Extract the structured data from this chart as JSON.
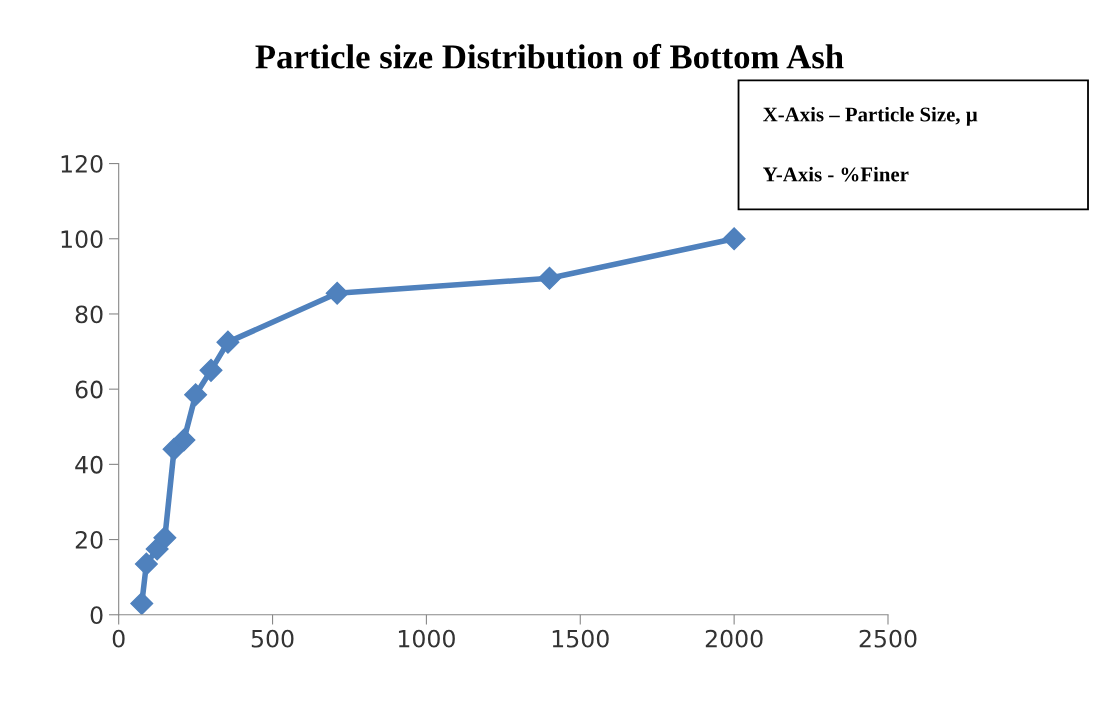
{
  "chart_data": {
    "type": "line",
    "title": "Particle size Distribution of Bottom Ash",
    "annotations": [
      "X-Axis – Particle Size, µ",
      "Y-Axis - %Finer"
    ],
    "x": [
      75,
      90,
      125,
      150,
      180,
      212,
      250,
      300,
      355,
      710,
      1400,
      2000
    ],
    "series": [
      {
        "color": "#4f81bd",
        "values": [
          3,
          13.5,
          17.5,
          20.5,
          44,
          46.5,
          58.5,
          65,
          72.5,
          85.5,
          89.5,
          100
        ]
      }
    ],
    "xlim": [
      0,
      2500
    ],
    "xticks": [
      0,
      500,
      1000,
      1500,
      2000,
      2500
    ],
    "ylim": [
      0,
      120
    ],
    "yticks": [
      0,
      20,
      40,
      60,
      80,
      100,
      120
    ],
    "grid": false,
    "legend": false,
    "marker": "diamond",
    "line_style": "solid"
  }
}
